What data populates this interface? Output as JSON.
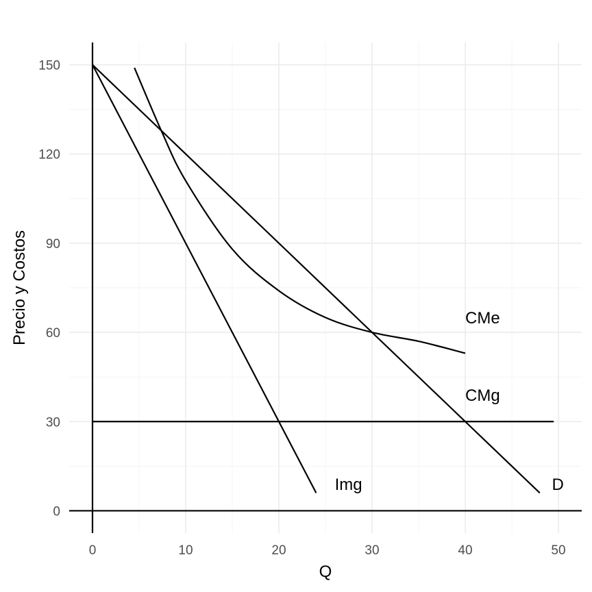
{
  "chart_data": {
    "type": "line",
    "xlabel": "Q",
    "ylabel": "Precio y Costos",
    "xlim": [
      -2.5,
      52.5
    ],
    "ylim": [
      -7.5,
      157.5
    ],
    "x_ticks": [
      0,
      10,
      20,
      30,
      40,
      50
    ],
    "y_ticks": [
      0,
      30,
      60,
      90,
      120,
      150
    ],
    "grid": true,
    "series": [
      {
        "name": "D",
        "x": [
          0,
          48
        ],
        "y": [
          150,
          6
        ]
      },
      {
        "name": "Img",
        "x": [
          0,
          24
        ],
        "y": [
          150,
          6
        ]
      },
      {
        "name": "CMg",
        "x": [
          0,
          49.5
        ],
        "y": [
          30,
          30
        ]
      },
      {
        "name": "CMe",
        "x": [
          4.5,
          7.5,
          10,
          15,
          20,
          25,
          30,
          35,
          40
        ],
        "y": [
          149,
          127,
          111,
          88,
          74,
          65,
          60,
          57,
          53
        ]
      }
    ],
    "annotations": [
      {
        "text": "CMe",
        "x": 40,
        "y": 63
      },
      {
        "text": "CMg",
        "x": 40,
        "y": 37
      },
      {
        "text": "Img",
        "x": 26,
        "y": 7
      },
      {
        "text": "D",
        "x": 49.3,
        "y": 7
      }
    ]
  }
}
